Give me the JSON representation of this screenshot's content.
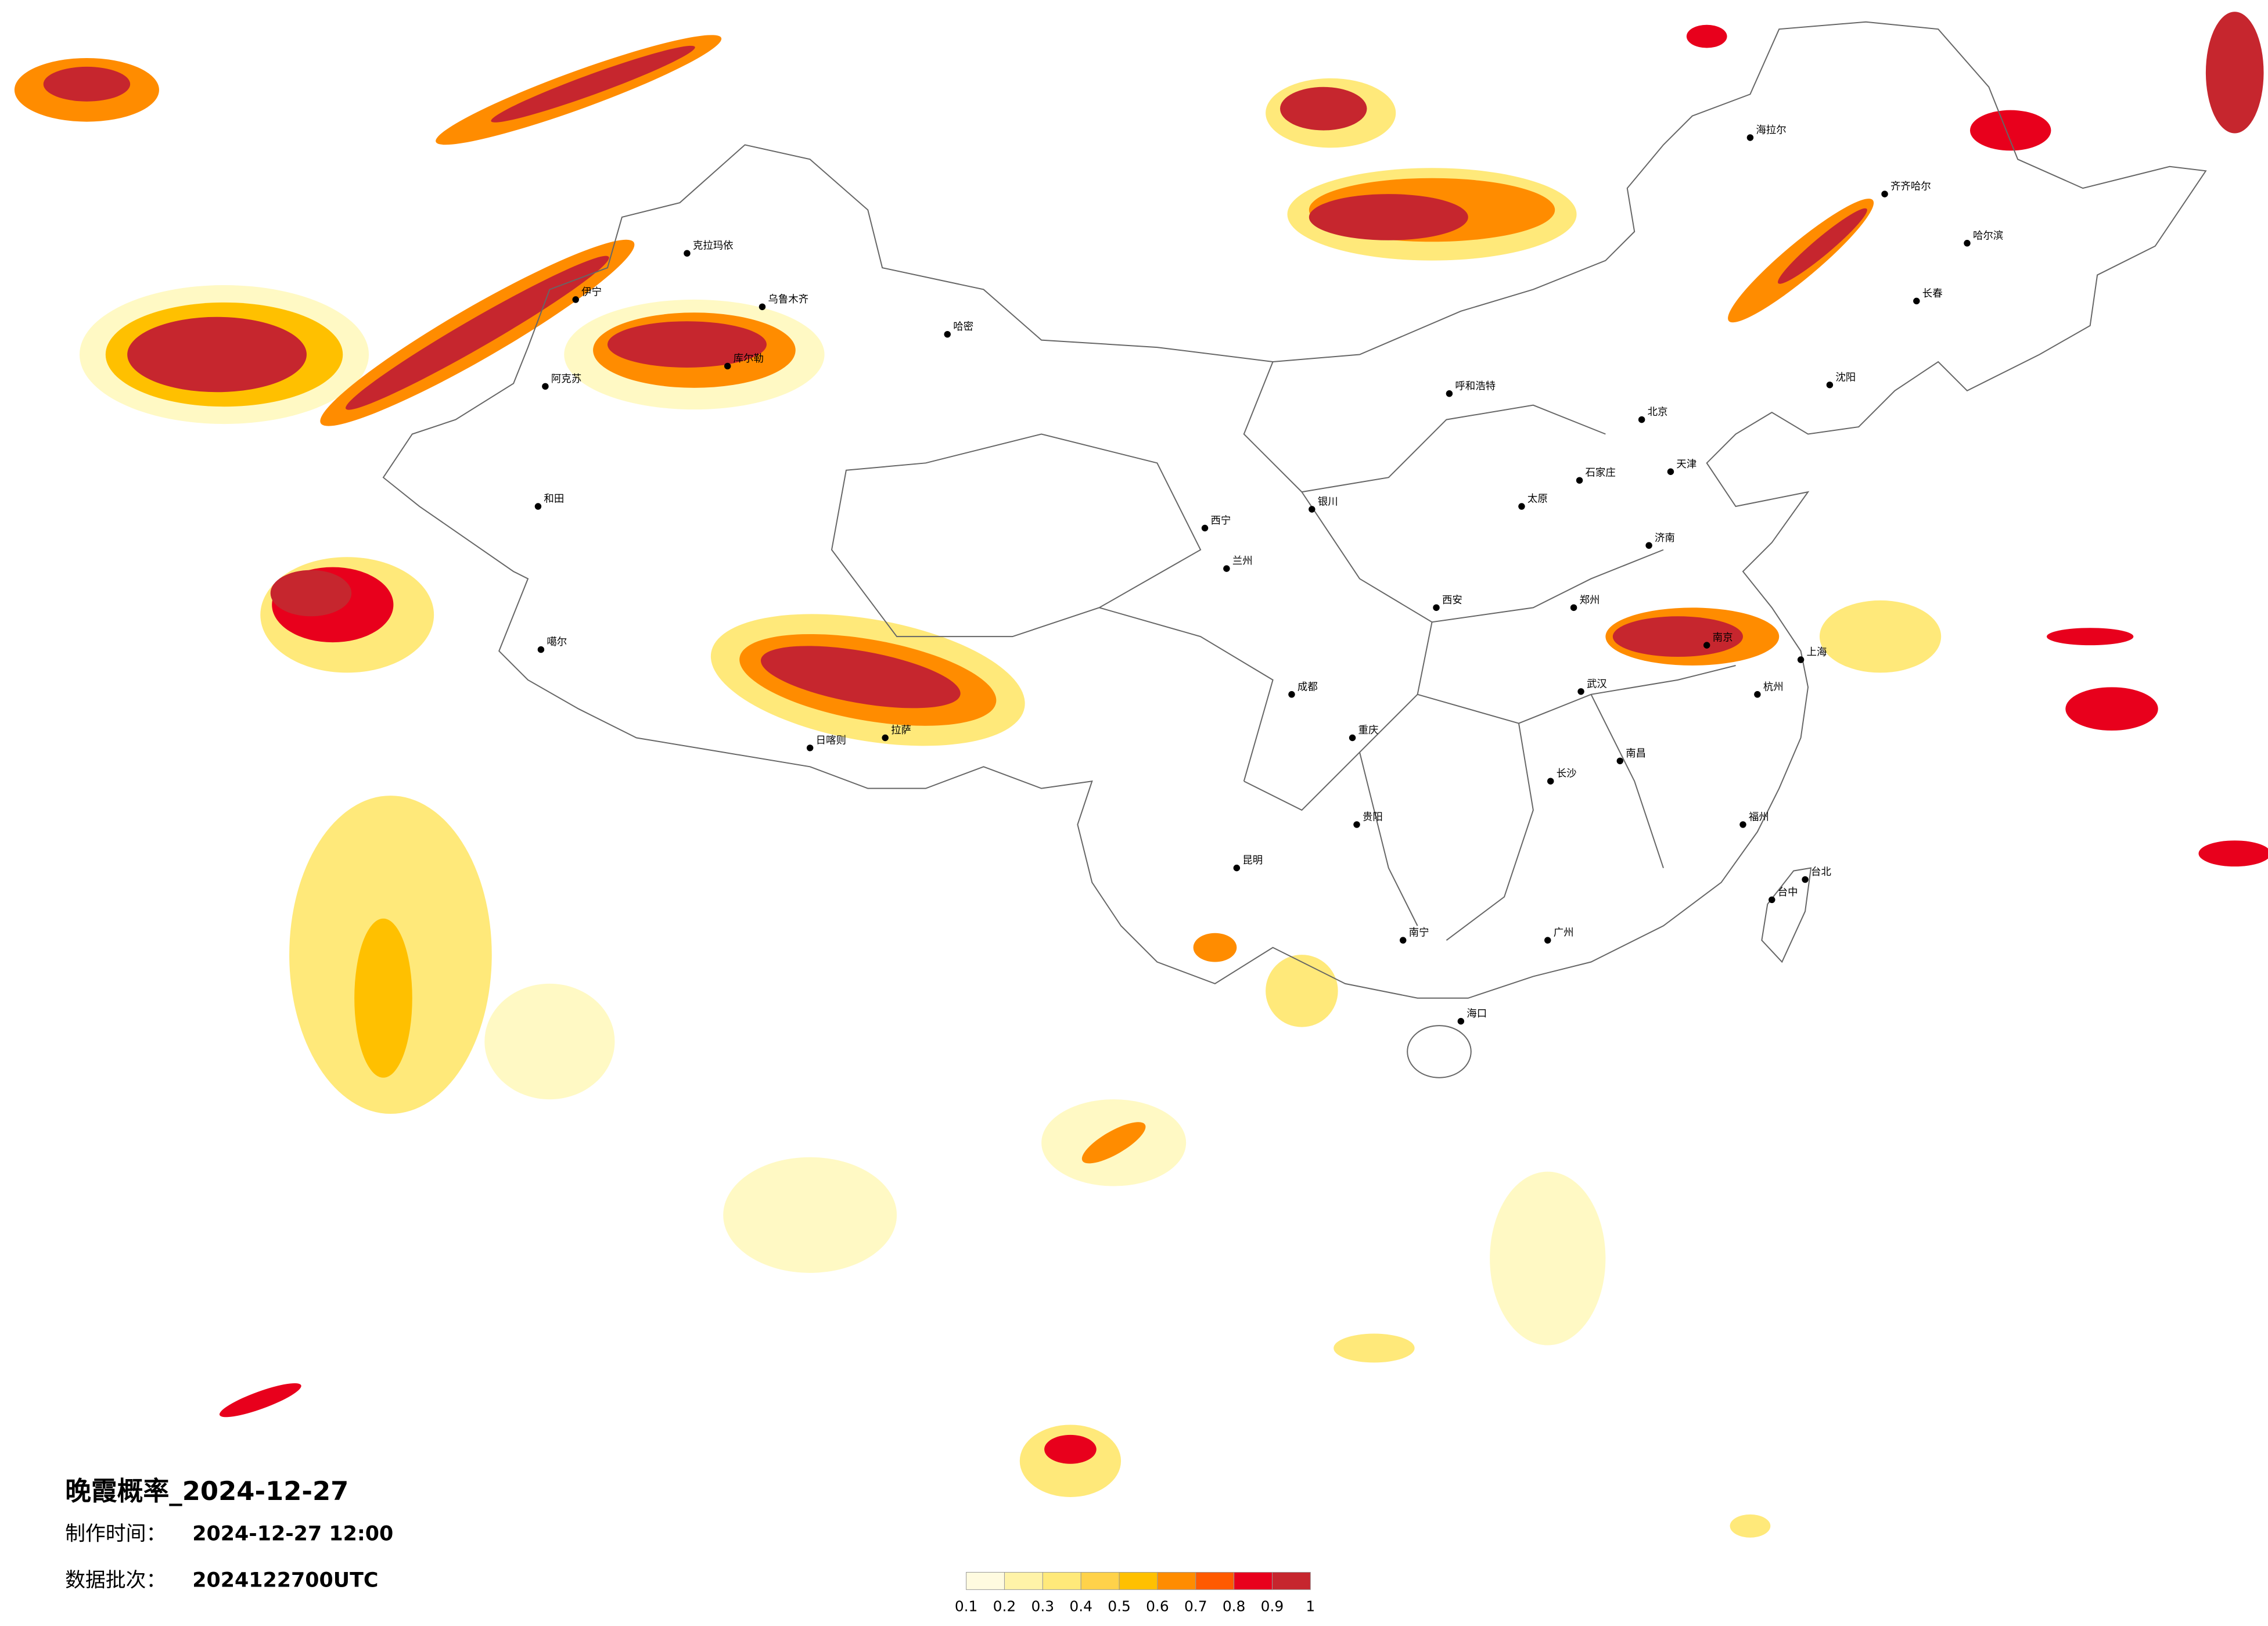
{
  "map": {
    "title": "晚霞概率_2024-12-27",
    "made_label": "制作时间：",
    "made_time": "2024-12-27 12:00",
    "batch_label": "数据批次：",
    "batch": "2024122700UTC",
    "legend": {
      "colors": [
        "#fffbe0",
        "#fff3a8",
        "#ffe97a",
        "#ffd24a",
        "#ffc000",
        "#ff8c00",
        "#ff5a00",
        "#e8001c",
        "#c6262e"
      ],
      "labels": [
        0.1,
        0.2,
        0.3,
        0.4,
        0.5,
        0.6,
        0.7,
        0.8,
        0.9,
        1
      ]
    },
    "cities": [
      "克拉玛依",
      "乌鲁木齐",
      "哈密",
      "伊宁",
      "库尔勒",
      "阿克苏",
      "和田",
      "噶尔",
      "拉萨",
      "日喀则",
      "西宁",
      "兰州",
      "银川",
      "呼和浩特",
      "北京",
      "天津",
      "石家庄",
      "太原",
      "济南",
      "郑州",
      "西安",
      "武汉",
      "南京",
      "上海",
      "杭州",
      "长沙",
      "南昌",
      "福州",
      "广州",
      "南宁",
      "海口",
      "昆明",
      "贵阳",
      "成都",
      "重庆",
      "沈阳",
      "长春",
      "哈尔滨",
      "齐齐哈尔",
      "海拉尔",
      "台北",
      "台中"
    ]
  }
}
